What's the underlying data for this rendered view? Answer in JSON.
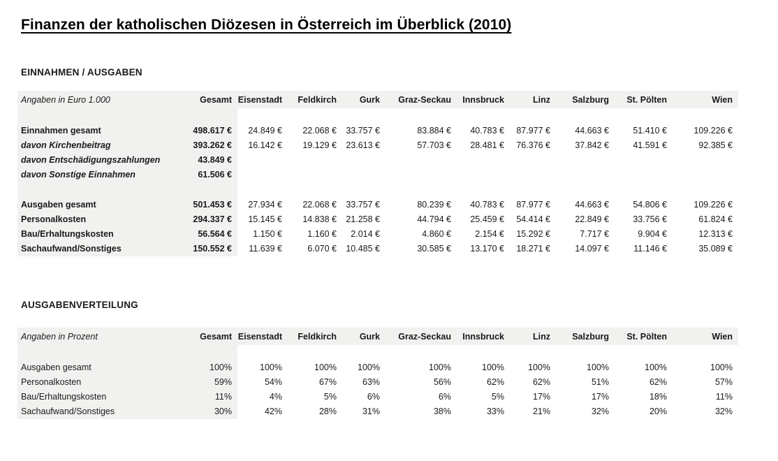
{
  "page_title": "Finanzen der katholischen Diözesen in Österreich im Überblick (2010)",
  "colors": {
    "band_background": "#f1f1ef",
    "text": "#1a1a1a",
    "page_background": "#ffffff"
  },
  "sections": [
    {
      "id": "einnahmen-ausgaben",
      "heading": "EINNAHMEN / AUSGABEN",
      "unit_label": "Angaben in Euro 1.000",
      "columns": [
        "Gesamt",
        "Eisenstadt",
        "Feldkirch",
        "Gurk",
        "Graz-Seckau",
        "Innsbruck",
        "Linz",
        "Salzburg",
        "St. Pölten",
        "Wien"
      ],
      "rows": [
        {
          "label": "",
          "emphasis": "spacer",
          "values": [
            "",
            "",
            "",
            "",
            "",
            "",
            "",
            "",
            "",
            ""
          ]
        },
        {
          "label": "Einnahmen gesamt",
          "emphasis": "bold",
          "values": [
            "498.617 €",
            "24.849 €",
            "22.068 €",
            "33.757 €",
            "83.884 €",
            "40.783 €",
            "87.977 €",
            "44.663 €",
            "51.410 €",
            "109.226 €"
          ]
        },
        {
          "label": "davon Kirchenbeitrag",
          "emphasis": "bold-italic",
          "values": [
            "393.262 €",
            "16.142 €",
            "19.129 €",
            "23.613 €",
            "57.703 €",
            "28.481 €",
            "76.376 €",
            "37.842 €",
            "41.591 €",
            "92.385 €"
          ]
        },
        {
          "label": "davon Entschädigungszahlungen",
          "emphasis": "bold-italic",
          "values": [
            "43.849 €",
            "",
            "",
            "",
            "",
            "",
            "",
            "",
            "",
            ""
          ]
        },
        {
          "label": "davon Sonstige Einnahmen",
          "emphasis": "bold-italic",
          "values": [
            "61.506 €",
            "",
            "",
            "",
            "",
            "",
            "",
            "",
            "",
            ""
          ]
        },
        {
          "label": "",
          "emphasis": "spacer",
          "values": [
            "",
            "",
            "",
            "",
            "",
            "",
            "",
            "",
            "",
            ""
          ]
        },
        {
          "label": "Ausgaben gesamt",
          "emphasis": "bold",
          "values": [
            "501.453 €",
            "27.934 €",
            "22.068 €",
            "33.757 €",
            "80.239 €",
            "40.783 €",
            "87.977 €",
            "44.663 €",
            "54.806 €",
            "109.226 €"
          ]
        },
        {
          "label": "Personalkosten",
          "emphasis": "bold",
          "values": [
            "294.337 €",
            "15.145 €",
            "14.838 €",
            "21.258 €",
            "44.794 €",
            "25.459 €",
            "54.414 €",
            "22.849 €",
            "33.756 €",
            "61.824 €"
          ]
        },
        {
          "label": "Bau/Erhaltungskosten",
          "emphasis": "bold",
          "values": [
            "56.564 €",
            "1.150 €",
            "1.160 €",
            "2.014 €",
            "4.860 €",
            "2.154 €",
            "15.292 €",
            "7.717 €",
            "9.904 €",
            "12.313 €"
          ]
        },
        {
          "label": "Sachaufwand/Sonstiges",
          "emphasis": "bold",
          "values": [
            "150.552 €",
            "11.639 €",
            "6.070 €",
            "10.485 €",
            "30.585 €",
            "13.170 €",
            "18.271 €",
            "14.097 €",
            "11.146 €",
            "35.089 €"
          ]
        }
      ]
    },
    {
      "id": "ausgabenverteilung",
      "heading": "AUSGABENVERTEILUNG",
      "unit_label": "Angaben in Prozent",
      "columns": [
        "Gesamt",
        "Eisenstadt",
        "Feldkirch",
        "Gurk",
        "Graz-Seckau",
        "Innsbruck",
        "Linz",
        "Salzburg",
        "St. Pölten",
        "Wien"
      ],
      "rows": [
        {
          "label": "",
          "emphasis": "spacer",
          "values": [
            "",
            "",
            "",
            "",
            "",
            "",
            "",
            "",
            "",
            ""
          ]
        },
        {
          "label": "Ausgaben gesamt",
          "emphasis": "regular",
          "values": [
            "100%",
            "100%",
            "100%",
            "100%",
            "100%",
            "100%",
            "100%",
            "100%",
            "100%",
            "100%"
          ]
        },
        {
          "label": "Personalkosten",
          "emphasis": "regular",
          "values": [
            "59%",
            "54%",
            "67%",
            "63%",
            "56%",
            "62%",
            "62%",
            "51%",
            "62%",
            "57%"
          ]
        },
        {
          "label": "Bau/Erhaltungskosten",
          "emphasis": "regular",
          "values": [
            "11%",
            "4%",
            "5%",
            "6%",
            "6%",
            "5%",
            "17%",
            "17%",
            "18%",
            "11%"
          ]
        },
        {
          "label": "Sachaufwand/Sonstiges",
          "emphasis": "regular",
          "values": [
            "30%",
            "42%",
            "28%",
            "31%",
            "38%",
            "33%",
            "21%",
            "32%",
            "20%",
            "32%"
          ]
        }
      ]
    }
  ]
}
